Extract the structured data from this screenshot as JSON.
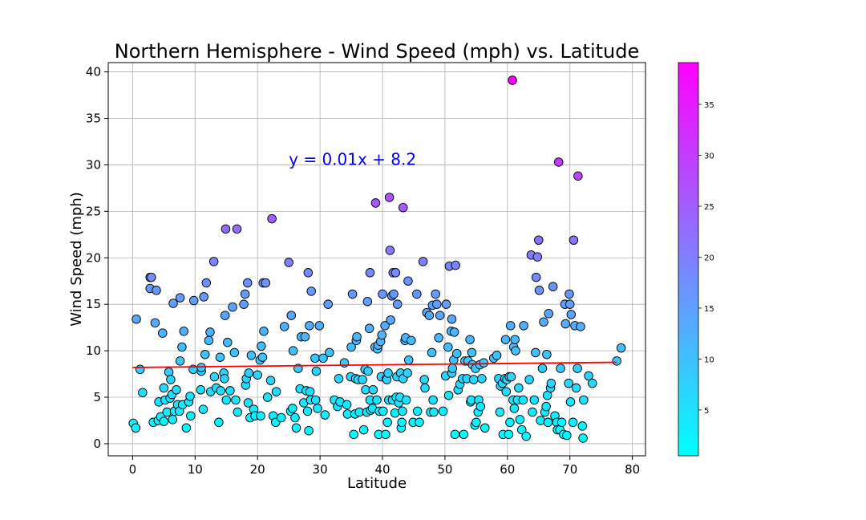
{
  "chart_data": {
    "type": "scatter",
    "title": "Northern Hemisphere - Wind Speed (mph) vs. Latitude",
    "xlabel": "Latitude",
    "ylabel": "Wind Speed (mph)",
    "xlim": [
      -3.9,
      82.1
    ],
    "ylim": [
      -1.3,
      41.0
    ],
    "xticks": [
      0,
      10,
      20,
      30,
      40,
      50,
      60,
      70,
      80
    ],
    "yticks": [
      0,
      5,
      10,
      15,
      20,
      25,
      30,
      35,
      40
    ],
    "grid": true,
    "colormap": "cool",
    "marker_edge_color": "#000000",
    "colorbar": {
      "ticks": [
        5,
        10,
        15,
        20,
        25,
        30,
        35
      ],
      "range": [
        0.5,
        39.1
      ]
    },
    "regression": {
      "equation": "y = 0.01x + 8.2",
      "slope": 0.0072,
      "intercept": 8.2,
      "x_range": [
        0,
        77.5
      ],
      "color": "#ff0000",
      "label_color": "#0000ff",
      "label_at": [
        25.0,
        30.0
      ]
    },
    "points": [
      [
        0.1,
        2.2
      ],
      [
        0.5,
        1.7
      ],
      [
        0.6,
        13.4
      ],
      [
        1.2,
        8.0
      ],
      [
        1.6,
        5.5
      ],
      [
        2.8,
        16.7
      ],
      [
        2.8,
        17.9
      ],
      [
        3.0,
        17.9
      ],
      [
        3.3,
        2.3
      ],
      [
        3.6,
        13.0
      ],
      [
        3.8,
        16.5
      ],
      [
        4.1,
        2.5
      ],
      [
        4.2,
        4.5
      ],
      [
        4.5,
        2.9
      ],
      [
        4.8,
        11.9
      ],
      [
        5.0,
        2.4
      ],
      [
        5.0,
        6.0
      ],
      [
        5.2,
        4.7
      ],
      [
        5.5,
        3.4
      ],
      [
        5.8,
        7.7
      ],
      [
        6.0,
        4.9
      ],
      [
        6.1,
        6.9
      ],
      [
        6.3,
        5.3
      ],
      [
        6.4,
        2.6
      ],
      [
        6.5,
        15.1
      ],
      [
        6.7,
        3.5
      ],
      [
        7.0,
        5.8
      ],
      [
        7.2,
        4.2
      ],
      [
        7.5,
        3.5
      ],
      [
        7.6,
        8.9
      ],
      [
        7.6,
        15.7
      ],
      [
        7.9,
        10.4
      ],
      [
        8.0,
        4.2
      ],
      [
        8.2,
        12.1
      ],
      [
        8.6,
        1.7
      ],
      [
        9.0,
        4.5
      ],
      [
        9.2,
        5.1
      ],
      [
        9.3,
        3.0
      ],
      [
        9.7,
        8.0
      ],
      [
        9.8,
        15.4
      ],
      [
        10.9,
        5.8
      ],
      [
        11.0,
        7.8
      ],
      [
        11.0,
        8.2
      ],
      [
        11.3,
        3.7
      ],
      [
        11.4,
        15.8
      ],
      [
        11.6,
        9.6
      ],
      [
        11.8,
        17.3
      ],
      [
        12.2,
        11.1
      ],
      [
        12.4,
        12.0
      ],
      [
        12.5,
        5.6
      ],
      [
        13.0,
        19.6
      ],
      [
        13.1,
        7.2
      ],
      [
        13.4,
        6.0
      ],
      [
        13.8,
        2.3
      ],
      [
        14.0,
        9.3
      ],
      [
        14.1,
        5.7
      ],
      [
        14.6,
        7.6
      ],
      [
        14.7,
        7.0
      ],
      [
        14.8,
        13.8
      ],
      [
        14.9,
        23.1
      ],
      [
        15.0,
        4.7
      ],
      [
        15.2,
        10.9
      ],
      [
        15.6,
        5.7
      ],
      [
        16.0,
        14.7
      ],
      [
        16.3,
        9.8
      ],
      [
        16.5,
        4.7
      ],
      [
        16.7,
        23.1
      ],
      [
        16.8,
        3.4
      ],
      [
        17.8,
        15.0
      ],
      [
        18.0,
        16.1
      ],
      [
        18.1,
        6.3
      ],
      [
        18.2,
        7.0
      ],
      [
        18.4,
        17.3
      ],
      [
        18.5,
        4.4
      ],
      [
        18.6,
        7.6
      ],
      [
        18.8,
        2.8
      ],
      [
        19.0,
        9.5
      ],
      [
        19.4,
        3.7
      ],
      [
        19.6,
        3.0
      ],
      [
        20.0,
        7.4
      ],
      [
        20.4,
        9.0
      ],
      [
        20.5,
        3.0
      ],
      [
        20.6,
        10.5
      ],
      [
        20.8,
        9.3
      ],
      [
        20.9,
        17.3
      ],
      [
        21.0,
        12.1
      ],
      [
        21.3,
        17.3
      ],
      [
        21.6,
        5.0
      ],
      [
        22.1,
        6.8
      ],
      [
        22.3,
        24.2
      ],
      [
        22.5,
        3.0
      ],
      [
        22.9,
        2.3
      ],
      [
        23.0,
        5.6
      ],
      [
        23.8,
        2.8
      ],
      [
        24.3,
        12.6
      ],
      [
        25.0,
        19.5
      ],
      [
        25.3,
        3.5
      ],
      [
        25.4,
        13.8
      ],
      [
        25.6,
        3.8
      ],
      [
        25.7,
        10.0
      ],
      [
        26.0,
        2.8
      ],
      [
        26.2,
        1.7
      ],
      [
        26.5,
        8.1
      ],
      [
        26.8,
        5.9
      ],
      [
        27.0,
        11.5
      ],
      [
        27.4,
        4.4
      ],
      [
        27.6,
        11.5
      ],
      [
        27.8,
        5.7
      ],
      [
        28.0,
        3.5
      ],
      [
        28.1,
        18.4
      ],
      [
        28.2,
        1.4
      ],
      [
        28.3,
        12.7
      ],
      [
        28.4,
        5.6
      ],
      [
        28.5,
        4.7
      ],
      [
        28.6,
        16.4
      ],
      [
        29.2,
        9.2
      ],
      [
        29.3,
        4.7
      ],
      [
        29.4,
        7.8
      ],
      [
        29.6,
        3.8
      ],
      [
        29.9,
        12.7
      ],
      [
        30.5,
        9.2
      ],
      [
        30.8,
        3.1
      ],
      [
        31.3,
        15.0
      ],
      [
        31.5,
        9.8
      ],
      [
        32.3,
        4.7
      ],
      [
        32.8,
        4.0
      ],
      [
        33.0,
        7.0
      ],
      [
        33.2,
        4.5
      ],
      [
        33.9,
        8.7
      ],
      [
        34.3,
        4.2
      ],
      [
        34.4,
        3.2
      ],
      [
        34.9,
        7.2
      ],
      [
        35.0,
        10.4
      ],
      [
        35.2,
        16.1
      ],
      [
        35.4,
        1.0
      ],
      [
        35.6,
        3.2
      ],
      [
        35.7,
        7.0
      ],
      [
        35.8,
        11.1
      ],
      [
        35.9,
        11.5
      ],
      [
        36.1,
        6.9
      ],
      [
        36.3,
        3.4
      ],
      [
        36.8,
        6.9
      ],
      [
        37.0,
        1.5
      ],
      [
        37.2,
        8.0
      ],
      [
        37.3,
        5.8
      ],
      [
        37.5,
        3.4
      ],
      [
        37.6,
        15.3
      ],
      [
        37.7,
        7.8
      ],
      [
        37.9,
        12.4
      ],
      [
        38.0,
        18.4
      ],
      [
        38.0,
        4.7
      ],
      [
        38.1,
        3.6
      ],
      [
        38.4,
        3.8
      ],
      [
        38.5,
        5.8
      ],
      [
        38.8,
        10.4
      ],
      [
        38.9,
        25.9
      ],
      [
        39.1,
        4.7
      ],
      [
        39.2,
        10.2
      ],
      [
        39.3,
        10.6
      ],
      [
        39.4,
        1.0
      ],
      [
        39.5,
        3.5
      ],
      [
        39.7,
        11.0
      ],
      [
        39.8,
        7.2
      ],
      [
        39.9,
        11.7
      ],
      [
        40.0,
        16.1
      ],
      [
        40.1,
        3.5
      ],
      [
        40.4,
        12.7
      ],
      [
        40.5,
        1.0
      ],
      [
        40.6,
        7.0
      ],
      [
        40.7,
        6.9
      ],
      [
        40.8,
        2.3
      ],
      [
        40.9,
        7.6
      ],
      [
        41.0,
        4.7
      ],
      [
        41.1,
        26.5
      ],
      [
        41.2,
        20.8
      ],
      [
        41.3,
        13.3
      ],
      [
        41.5,
        15.9
      ],
      [
        41.6,
        4.7
      ],
      [
        41.7,
        18.4
      ],
      [
        41.8,
        16.1
      ],
      [
        42.0,
        3.3
      ],
      [
        42.1,
        18.4
      ],
      [
        42.2,
        5.0
      ],
      [
        42.3,
        7.2
      ],
      [
        42.4,
        15.0
      ],
      [
        42.6,
        4.4
      ],
      [
        42.8,
        5.0
      ],
      [
        42.9,
        7.6
      ],
      [
        43.0,
        1.7
      ],
      [
        43.1,
        2.3
      ],
      [
        43.2,
        3.5
      ],
      [
        43.3,
        7.0
      ],
      [
        43.3,
        25.4
      ],
      [
        43.6,
        11.1
      ],
      [
        43.7,
        11.4
      ],
      [
        43.8,
        4.7
      ],
      [
        44.0,
        7.6
      ],
      [
        44.1,
        17.5
      ],
      [
        44.2,
        9.0
      ],
      [
        44.6,
        11.1
      ],
      [
        44.9,
        2.3
      ],
      [
        45.5,
        16.1
      ],
      [
        45.6,
        3.5
      ],
      [
        45.9,
        2.3
      ],
      [
        46.5,
        19.6
      ],
      [
        46.7,
        6.9
      ],
      [
        46.8,
        6.0
      ],
      [
        47.1,
        14.1
      ],
      [
        47.5,
        13.8
      ],
      [
        47.7,
        3.4
      ],
      [
        47.9,
        9.8
      ],
      [
        48.0,
        14.9
      ],
      [
        48.1,
        4.7
      ],
      [
        48.2,
        3.4
      ],
      [
        48.5,
        16.1
      ],
      [
        48.7,
        15.0
      ],
      [
        49.0,
        11.4
      ],
      [
        49.2,
        13.8
      ],
      [
        49.7,
        3.5
      ],
      [
        50.1,
        7.3
      ],
      [
        50.2,
        15.0
      ],
      [
        50.5,
        10.4
      ],
      [
        50.6,
        5.2
      ],
      [
        50.7,
        19.1
      ],
      [
        51.0,
        12.1
      ],
      [
        51.1,
        13.4
      ],
      [
        51.1,
        7.6
      ],
      [
        51.2,
        8.1
      ],
      [
        51.4,
        9.0
      ],
      [
        51.5,
        12.0
      ],
      [
        51.6,
        1.0
      ],
      [
        51.7,
        19.2
      ],
      [
        51.9,
        9.7
      ],
      [
        52.1,
        5.8
      ],
      [
        52.4,
        6.4
      ],
      [
        52.8,
        7.0
      ],
      [
        53.0,
        1.0
      ],
      [
        53.2,
        8.9
      ],
      [
        53.5,
        7.0
      ],
      [
        53.7,
        8.9
      ],
      [
        54.0,
        11.2
      ],
      [
        54.1,
        4.5
      ],
      [
        54.2,
        4.7
      ],
      [
        54.3,
        9.8
      ],
      [
        54.4,
        8.5
      ],
      [
        54.6,
        6.9
      ],
      [
        54.8,
        2.0
      ],
      [
        54.9,
        8.1
      ],
      [
        55.0,
        2.3
      ],
      [
        55.3,
        3.4
      ],
      [
        55.4,
        4.7
      ],
      [
        55.6,
        8.5
      ],
      [
        55.7,
        4.0
      ],
      [
        55.9,
        7.0
      ],
      [
        56.2,
        8.7
      ],
      [
        56.4,
        1.7
      ],
      [
        57.8,
        9.2
      ],
      [
        58.3,
        9.5
      ],
      [
        58.6,
        7.0
      ],
      [
        58.8,
        3.4
      ],
      [
        58.9,
        6.2
      ],
      [
        59.2,
        6.5
      ],
      [
        59.3,
        1.0
      ],
      [
        59.6,
        7.0
      ],
      [
        59.7,
        11.2
      ],
      [
        59.8,
        5.6
      ],
      [
        59.9,
        6.9
      ],
      [
        60.2,
        1.0
      ],
      [
        60.3,
        7.2
      ],
      [
        60.4,
        2.3
      ],
      [
        60.5,
        12.7
      ],
      [
        60.6,
        7.2
      ],
      [
        60.8,
        39.1
      ],
      [
        60.9,
        4.7
      ],
      [
        61.0,
        10.4
      ],
      [
        61.1,
        3.8
      ],
      [
        61.2,
        11.2
      ],
      [
        61.3,
        10.0
      ],
      [
        61.6,
        4.7
      ],
      [
        61.8,
        6.0
      ],
      [
        62.0,
        2.6
      ],
      [
        62.3,
        1.5
      ],
      [
        62.5,
        4.7
      ],
      [
        62.6,
        12.7
      ],
      [
        63.0,
        0.8
      ],
      [
        63.5,
        6.9
      ],
      [
        63.8,
        20.3
      ],
      [
        64.0,
        3.4
      ],
      [
        64.3,
        4.7
      ],
      [
        64.5,
        9.8
      ],
      [
        64.6,
        17.9
      ],
      [
        64.8,
        20.1
      ],
      [
        65.0,
        21.9
      ],
      [
        65.1,
        16.5
      ],
      [
        65.3,
        2.5
      ],
      [
        65.6,
        8.1
      ],
      [
        65.8,
        13.1
      ],
      [
        66.0,
        3.4
      ],
      [
        66.2,
        4.0
      ],
      [
        66.3,
        9.6
      ],
      [
        66.4,
        5.2
      ],
      [
        66.5,
        2.3
      ],
      [
        66.6,
        14.0
      ],
      [
        66.9,
        6.0
      ],
      [
        67.0,
        6.5
      ],
      [
        67.3,
        16.9
      ],
      [
        67.6,
        3.0
      ],
      [
        67.9,
        2.3
      ],
      [
        68.0,
        1.5
      ],
      [
        68.2,
        30.3
      ],
      [
        68.4,
        1.5
      ],
      [
        68.5,
        8.1
      ],
      [
        68.7,
        2.3
      ],
      [
        69.0,
        1.0
      ],
      [
        69.2,
        15.0
      ],
      [
        69.3,
        12.9
      ],
      [
        69.5,
        0.9
      ],
      [
        69.8,
        6.5
      ],
      [
        69.9,
        16.1
      ],
      [
        70.0,
        15.0
      ],
      [
        70.1,
        4.5
      ],
      [
        70.2,
        13.9
      ],
      [
        70.5,
        2.3
      ],
      [
        70.6,
        21.9
      ],
      [
        70.8,
        12.7
      ],
      [
        71.0,
        6.0
      ],
      [
        71.2,
        8.1
      ],
      [
        71.3,
        28.8
      ],
      [
        71.7,
        12.6
      ],
      [
        72.0,
        1.9
      ],
      [
        72.1,
        0.6
      ],
      [
        72.2,
        4.7
      ],
      [
        73.0,
        7.3
      ],
      [
        73.6,
        6.5
      ],
      [
        77.5,
        8.9
      ],
      [
        78.2,
        10.3
      ]
    ]
  }
}
